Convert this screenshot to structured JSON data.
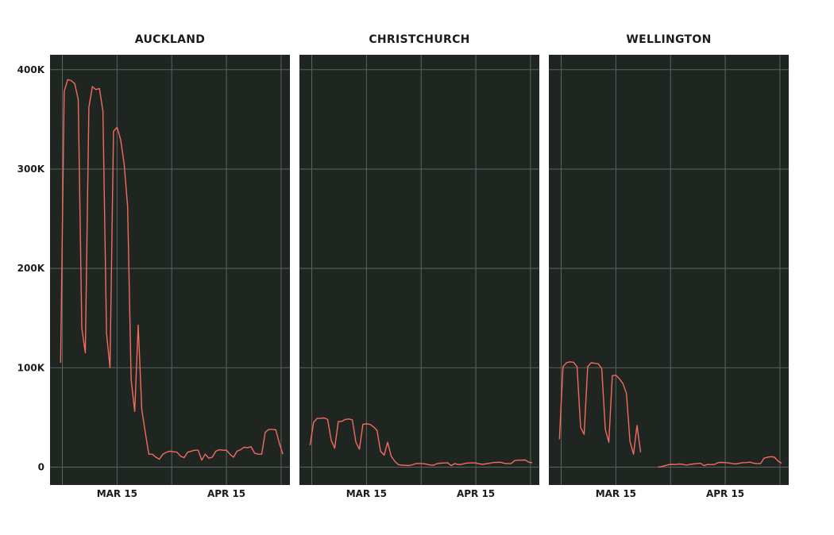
{
  "colors": {
    "panel_background": "#1f2622",
    "grid": "#5d635f",
    "line": "#f26b5e",
    "text": "#1b1b1b",
    "page_background": "#ffffff"
  },
  "chart_data": [
    {
      "type": "line",
      "title": "AUCKLAND",
      "xlabel": "",
      "ylabel": "",
      "ylim": [
        -18000,
        415000
      ],
      "xlim": [
        "2020-02-25",
        "2020-05-03"
      ],
      "x_ticks": [
        {
          "date": "2020-03-15",
          "label": "MAR 15"
        },
        {
          "date": "2020-04-15",
          "label": "APR 15"
        }
      ],
      "y_ticks": [
        {
          "value": 0,
          "label": "0"
        },
        {
          "value": 100000,
          "label": "100K"
        },
        {
          "value": 200000,
          "label": "200K"
        },
        {
          "value": 300000,
          "label": "300K"
        },
        {
          "value": 400000,
          "label": "400K"
        }
      ],
      "grid": true,
      "series": [
        {
          "segments": [
            [
              [
                "2020-02-28",
                105000
              ],
              [
                "2020-02-29",
                378000
              ],
              [
                "2020-03-01",
                390000
              ],
              [
                "2020-03-02",
                389000
              ],
              [
                "2020-03-03",
                386000
              ],
              [
                "2020-03-04",
                370000
              ],
              [
                "2020-03-05",
                140000
              ],
              [
                "2020-03-06",
                115000
              ],
              [
                "2020-03-07",
                362000
              ],
              [
                "2020-03-08",
                383000
              ],
              [
                "2020-03-09",
                380000
              ],
              [
                "2020-03-10",
                381000
              ],
              [
                "2020-03-11",
                358000
              ],
              [
                "2020-03-12",
                135000
              ],
              [
                "2020-03-13",
                100000
              ],
              [
                "2020-03-14",
                338000
              ],
              [
                "2020-03-15",
                342000
              ],
              [
                "2020-03-16",
                330000
              ],
              [
                "2020-03-17",
                305000
              ],
              [
                "2020-03-18",
                262000
              ],
              [
                "2020-03-19",
                88000
              ],
              [
                "2020-03-20",
                56000
              ],
              [
                "2020-03-21",
                143000
              ],
              [
                "2020-03-22",
                58000
              ],
              [
                "2020-03-23",
                35000
              ],
              [
                "2020-03-24",
                13000
              ],
              [
                "2020-03-25",
                13000
              ],
              [
                "2020-03-26",
                10000
              ],
              [
                "2020-03-27",
                8000
              ],
              [
                "2020-03-28",
                13000
              ],
              [
                "2020-03-29",
                15000
              ],
              [
                "2020-03-30",
                16000
              ],
              [
                "2020-03-31",
                15500
              ],
              [
                "2020-04-01",
                15000
              ],
              [
                "2020-04-02",
                11000
              ],
              [
                "2020-04-03",
                9500
              ],
              [
                "2020-04-04",
                15000
              ],
              [
                "2020-04-05",
                16000
              ],
              [
                "2020-04-06",
                17000
              ],
              [
                "2020-04-07",
                17000
              ],
              [
                "2020-04-08",
                7000
              ],
              [
                "2020-04-09",
                13000
              ],
              [
                "2020-04-10",
                9000
              ],
              [
                "2020-04-11",
                10000
              ],
              [
                "2020-04-12",
                16000
              ],
              [
                "2020-04-13",
                17500
              ],
              [
                "2020-04-14",
                17000
              ],
              [
                "2020-04-15",
                17000
              ],
              [
                "2020-04-16",
                13000
              ],
              [
                "2020-04-17",
                10000
              ],
              [
                "2020-04-18",
                16000
              ],
              [
                "2020-04-19",
                17500
              ],
              [
                "2020-04-20",
                20000
              ],
              [
                "2020-04-21",
                19500
              ],
              [
                "2020-04-22",
                20500
              ],
              [
                "2020-04-23",
                14000
              ],
              [
                "2020-04-24",
                13000
              ],
              [
                "2020-04-25",
                13000
              ],
              [
                "2020-04-26",
                35000
              ],
              [
                "2020-04-27",
                38000
              ],
              [
                "2020-04-28",
                38000
              ],
              [
                "2020-04-29",
                37500
              ],
              [
                "2020-04-30",
                24000
              ],
              [
                "2020-05-01",
                13000
              ]
            ]
          ]
        }
      ]
    },
    {
      "type": "line",
      "title": "CHRISTCHURCH",
      "xlabel": "",
      "ylabel": "",
      "ylim": [
        -18000,
        415000
      ],
      "xlim": [
        "2020-02-25",
        "2020-05-03"
      ],
      "x_ticks": [
        {
          "date": "2020-03-15",
          "label": "MAR 15"
        },
        {
          "date": "2020-04-15",
          "label": "APR 15"
        }
      ],
      "y_ticks": [
        {
          "value": 0
        },
        {
          "value": 100000
        },
        {
          "value": 200000
        },
        {
          "value": 300000
        },
        {
          "value": 400000
        }
      ],
      "grid": true,
      "series": [
        {
          "segments": [
            [
              [
                "2020-02-28",
                22000
              ],
              [
                "2020-02-29",
                45000
              ],
              [
                "2020-03-01",
                49000
              ],
              [
                "2020-03-02",
                49000
              ],
              [
                "2020-03-03",
                49500
              ],
              [
                "2020-03-04",
                48000
              ],
              [
                "2020-03-05",
                27000
              ],
              [
                "2020-03-06",
                19000
              ],
              [
                "2020-03-07",
                46000
              ],
              [
                "2020-03-08",
                46000
              ],
              [
                "2020-03-09",
                48000
              ],
              [
                "2020-03-10",
                48500
              ],
              [
                "2020-03-11",
                47500
              ],
              [
                "2020-03-12",
                25000
              ],
              [
                "2020-03-13",
                18000
              ],
              [
                "2020-03-14",
                43000
              ],
              [
                "2020-03-15",
                43500
              ],
              [
                "2020-03-16",
                43000
              ],
              [
                "2020-03-17",
                40500
              ],
              [
                "2020-03-18",
                37000
              ],
              [
                "2020-03-19",
                16000
              ],
              [
                "2020-03-20",
                12000
              ],
              [
                "2020-03-21",
                25000
              ],
              [
                "2020-03-22",
                11000
              ],
              [
                "2020-03-23",
                6000
              ],
              [
                "2020-03-24",
                2500
              ],
              [
                "2020-03-25",
                2000
              ],
              [
                "2020-03-26",
                1800
              ],
              [
                "2020-03-27",
                1600
              ],
              [
                "2020-03-28",
                2400
              ],
              [
                "2020-03-29",
                3500
              ],
              [
                "2020-03-30",
                3700
              ],
              [
                "2020-03-31",
                3500
              ],
              [
                "2020-04-01",
                3000
              ],
              [
                "2020-04-02",
                2100
              ],
              [
                "2020-04-03",
                2000
              ],
              [
                "2020-04-04",
                3500
              ],
              [
                "2020-04-05",
                4000
              ],
              [
                "2020-04-06",
                4100
              ],
              [
                "2020-04-07",
                4300
              ],
              [
                "2020-04-08",
                1500
              ],
              [
                "2020-04-09",
                3500
              ],
              [
                "2020-04-10",
                2600
              ],
              [
                "2020-04-11",
                2800
              ],
              [
                "2020-04-12",
                3800
              ],
              [
                "2020-04-13",
                4100
              ],
              [
                "2020-04-14",
                4300
              ],
              [
                "2020-04-15",
                4100
              ],
              [
                "2020-04-16",
                3300
              ],
              [
                "2020-04-17",
                2800
              ],
              [
                "2020-04-18",
                3400
              ],
              [
                "2020-04-19",
                4000
              ],
              [
                "2020-04-20",
                4700
              ],
              [
                "2020-04-21",
                4800
              ],
              [
                "2020-04-22",
                4900
              ],
              [
                "2020-04-23",
                3800
              ],
              [
                "2020-04-24",
                3500
              ],
              [
                "2020-04-25",
                3600
              ],
              [
                "2020-04-26",
                6500
              ],
              [
                "2020-04-27",
                7000
              ],
              [
                "2020-04-28",
                7000
              ],
              [
                "2020-04-29",
                7200
              ],
              [
                "2020-04-30",
                5000
              ],
              [
                "2020-05-01",
                4300
              ]
            ]
          ]
        }
      ]
    },
    {
      "type": "line",
      "title": "WELLINGTON",
      "xlabel": "",
      "ylabel": "",
      "ylim": [
        -18000,
        415000
      ],
      "xlim": [
        "2020-02-25",
        "2020-05-03"
      ],
      "x_ticks": [
        {
          "date": "2020-03-15",
          "label": "MAR 15"
        },
        {
          "date": "2020-04-15",
          "label": "APR 15"
        }
      ],
      "y_ticks": [
        {
          "value": 0
        },
        {
          "value": 100000
        },
        {
          "value": 200000
        },
        {
          "value": 300000
        },
        {
          "value": 400000
        }
      ],
      "grid": true,
      "series": [
        {
          "segments": [
            [
              [
                "2020-02-28",
                28000
              ],
              [
                "2020-02-29",
                101000
              ],
              [
                "2020-03-01",
                105000
              ],
              [
                "2020-03-02",
                106000
              ],
              [
                "2020-03-03",
                105500
              ],
              [
                "2020-03-04",
                101000
              ],
              [
                "2020-03-05",
                40000
              ],
              [
                "2020-03-06",
                33000
              ],
              [
                "2020-03-07",
                101000
              ],
              [
                "2020-03-08",
                105000
              ],
              [
                "2020-03-09",
                104500
              ],
              [
                "2020-03-10",
                104000
              ],
              [
                "2020-03-11",
                99000
              ],
              [
                "2020-03-12",
                38000
              ],
              [
                "2020-03-13",
                25000
              ],
              [
                "2020-03-14",
                92000
              ],
              [
                "2020-03-15",
                92500
              ],
              [
                "2020-03-16",
                89000
              ],
              [
                "2020-03-17",
                84000
              ],
              [
                "2020-03-18",
                74000
              ],
              [
                "2020-03-19",
                26000
              ],
              [
                "2020-03-20",
                13000
              ],
              [
                "2020-03-21",
                42000
              ],
              [
                "2020-03-22",
                15000
              ]
            ],
            [
              [
                "2020-03-27",
                0
              ],
              [
                "2020-03-28",
                500
              ],
              [
                "2020-03-29",
                1500
              ],
              [
                "2020-03-30",
                2500
              ],
              [
                "2020-03-31",
                2800
              ],
              [
                "2020-04-01",
                2600
              ],
              [
                "2020-04-02",
                3200
              ],
              [
                "2020-04-03",
                2800
              ],
              [
                "2020-04-04",
                2000
              ],
              [
                "2020-04-05",
                2800
              ],
              [
                "2020-04-06",
                3200
              ],
              [
                "2020-04-07",
                3500
              ],
              [
                "2020-04-08",
                3800
              ],
              [
                "2020-04-09",
                1500
              ],
              [
                "2020-04-10",
                2700
              ],
              [
                "2020-04-11",
                2500
              ],
              [
                "2020-04-12",
                2800
              ],
              [
                "2020-04-13",
                4600
              ],
              [
                "2020-04-14",
                4800
              ],
              [
                "2020-04-15",
                4500
              ],
              [
                "2020-04-16",
                4200
              ],
              [
                "2020-04-17",
                3500
              ],
              [
                "2020-04-18",
                3200
              ],
              [
                "2020-04-19",
                3800
              ],
              [
                "2020-04-20",
                4500
              ],
              [
                "2020-04-21",
                4600
              ],
              [
                "2020-04-22",
                5000
              ],
              [
                "2020-04-23",
                4000
              ],
              [
                "2020-04-24",
                3500
              ],
              [
                "2020-04-25",
                3600
              ],
              [
                "2020-04-26",
                9000
              ],
              [
                "2020-04-27",
                10000
              ],
              [
                "2020-04-28",
                10500
              ],
              [
                "2020-04-29",
                10000
              ],
              [
                "2020-04-30",
                6000
              ],
              [
                "2020-05-01",
                4000
              ]
            ]
          ]
        }
      ]
    }
  ]
}
